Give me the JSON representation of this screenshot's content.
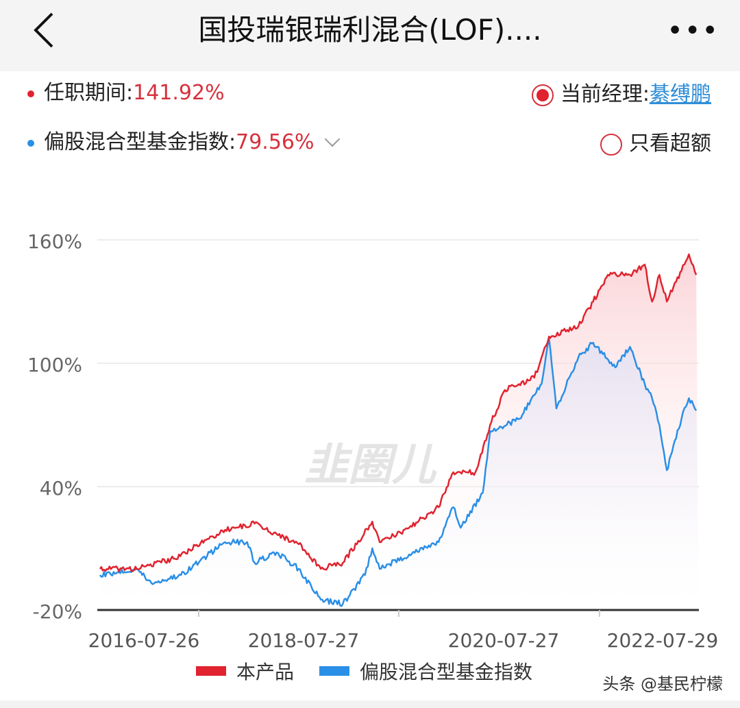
{
  "header": {
    "title": "国投瑞银瑞利混合(LOF)....",
    "back_icon": "chevron-left-icon",
    "more_icon": "more-dots-icon",
    "more_label": "•••"
  },
  "summary": {
    "tenure_label": "任职期间:",
    "tenure_value": "141.92%",
    "index_label": "偏股混合型基金指数:",
    "index_value": "79.56%",
    "manager_label": "当前经理:",
    "manager_name": "綦缚鹏",
    "excess_only_label": "只看超额"
  },
  "colors": {
    "product": "#e0232f",
    "index": "#2a8fe6",
    "value_text": "#d6303d",
    "link": "#2f8ed8"
  },
  "watermark": "韭圈儿",
  "attribution": "头条 @基民柠檬",
  "chart_data": {
    "type": "line",
    "ylim": [
      -20,
      160
    ],
    "yticks": [
      "160%",
      "100%",
      "40%",
      "-20%"
    ],
    "ytick_values": [
      160,
      100,
      40,
      -20
    ],
    "xticks": [
      "2016-07-26",
      "2018-07-27",
      "2020-07-27",
      "2022-07-29"
    ],
    "grid": true,
    "legend": "bottom",
    "series": [
      {
        "name": "本产品",
        "color": "#e0232f",
        "points": [
          [
            "2016-01",
            0
          ],
          [
            "2016-06",
            0
          ],
          [
            "2016-11",
            5
          ],
          [
            "2017-06",
            19
          ],
          [
            "2017-10",
            22
          ],
          [
            "2018-01",
            17
          ],
          [
            "2018-04",
            12
          ],
          [
            "2018-07",
            0
          ],
          [
            "2018-10",
            3
          ],
          [
            "2019-02",
            23
          ],
          [
            "2019-03",
            13
          ],
          [
            "2019-07",
            20
          ],
          [
            "2019-11",
            30
          ],
          [
            "2020-01",
            47
          ],
          [
            "2020-04",
            47
          ],
          [
            "2020-06",
            70
          ],
          [
            "2020-08",
            87
          ],
          [
            "2020-12",
            93
          ],
          [
            "2021-01",
            103
          ],
          [
            "2021-02",
            113
          ],
          [
            "2021-06",
            118
          ],
          [
            "2021-08",
            130
          ],
          [
            "2021-10",
            143
          ],
          [
            "2022-01",
            143
          ],
          [
            "2022-03",
            148
          ],
          [
            "2022-04",
            130
          ],
          [
            "2022-05",
            143
          ],
          [
            "2022-06",
            130
          ],
          [
            "2022-08",
            145
          ],
          [
            "2022-09",
            153
          ],
          [
            "2022-10",
            143
          ]
        ]
      },
      {
        "name": "偏股混合型基金指数",
        "color": "#2a8fe6",
        "points": [
          [
            "2016-01",
            -3
          ],
          [
            "2016-06",
            0
          ],
          [
            "2016-08",
            -7
          ],
          [
            "2016-12",
            -3
          ],
          [
            "2017-06",
            13
          ],
          [
            "2017-09",
            13
          ],
          [
            "2017-10",
            3
          ],
          [
            "2018-01",
            8
          ],
          [
            "2018-04",
            0
          ],
          [
            "2018-07",
            -15
          ],
          [
            "2018-10",
            -17
          ],
          [
            "2019-01",
            -3
          ],
          [
            "2019-02",
            10
          ],
          [
            "2019-03",
            0
          ],
          [
            "2019-07",
            7
          ],
          [
            "2019-11",
            13
          ],
          [
            "2020-01",
            30
          ],
          [
            "2020-02",
            20
          ],
          [
            "2020-05",
            37
          ],
          [
            "2020-06",
            67
          ],
          [
            "2020-10",
            73
          ],
          [
            "2021-01",
            90
          ],
          [
            "2021-02",
            112
          ],
          [
            "2021-03",
            78
          ],
          [
            "2021-06",
            103
          ],
          [
            "2021-08",
            110
          ],
          [
            "2021-11",
            98
          ],
          [
            "2022-01",
            108
          ],
          [
            "2022-03",
            90
          ],
          [
            "2022-04",
            83
          ],
          [
            "2022-05",
            70
          ],
          [
            "2022-06",
            48
          ],
          [
            "2022-08",
            73
          ],
          [
            "2022-09",
            83
          ],
          [
            "2022-10",
            77
          ]
        ]
      }
    ]
  }
}
